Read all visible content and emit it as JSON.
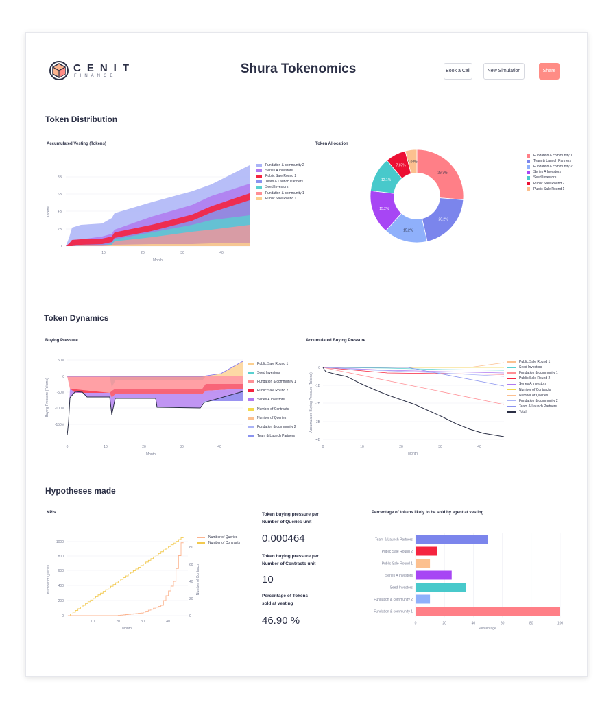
{
  "header": {
    "logo_line1": "CENIT",
    "logo_line2": "FINANCE",
    "title": "Shura Tokenomics",
    "buttons": {
      "book": "Book a Call",
      "new_sim": "New Simulation",
      "share": "Share"
    }
  },
  "colors": {
    "fundation_community_2": "#aab3f7",
    "series_a": "#b07af0",
    "public_sale_2": "#f5243f",
    "team_launch": "#8a93ef",
    "seed": "#59d0d0",
    "fundation_community_1": "#ff8f95",
    "public_sale_1": "#fccf8f",
    "number_contracts": "#f2d94e",
    "number_queries": "#fcc08f",
    "total": "#2b2f45",
    "accent": "#ff8c85"
  },
  "sections": {
    "distribution": "Token Distribution",
    "dynamics": "Token Dynamics",
    "hypotheses": "Hypotheses made"
  },
  "vesting_chart": {
    "title": "Accumulated Vesting (Tokens)",
    "ylabel": "Tokens",
    "xlabel": "Month",
    "yticks": [
      "0",
      "2B",
      "4B",
      "6B",
      "8B"
    ],
    "xticks": [
      "10",
      "20",
      "30",
      "40"
    ],
    "legend": [
      "Fundation & community 2",
      "Series A Investors",
      "Public Sale Round 2",
      "Team & Launch Partners",
      "Seed Investors",
      "Fundation & community 1",
      "Public Sale Round 1"
    ]
  },
  "allocation_chart": {
    "title": "Token Allocation",
    "legend": [
      "Fundation & community 1",
      "Team & Launch Partners",
      "Fundation & community 2",
      "Series A Investors",
      "Seed Investors",
      "Public Sale Round 2",
      "Public Sale Round 1"
    ],
    "labels": [
      "26.3%",
      "20.2%",
      "15.2%",
      "15.2%",
      "12.1%",
      "7.07%",
      "4.04%"
    ]
  },
  "buying_chart": {
    "title": "Buying Pressure",
    "ylabel": "Buying Pressure (Tokens)",
    "xlabel": "Month",
    "yticks": [
      "50M",
      "0",
      "-50M",
      "-100M",
      "-150M"
    ],
    "xticks": [
      "0",
      "10",
      "20",
      "30",
      "40"
    ],
    "legend": [
      "Public Sale Round 1",
      "Seed Investors",
      "Fundation & community 1",
      "Public Sale Round 2",
      "Series A Investors",
      "Number of Contracts",
      "Number of Queries",
      "Fundation & community 2",
      "Team & Launch Partners"
    ]
  },
  "acc_buying_chart": {
    "title": "Accumulated Buying Pressure",
    "ylabel": "Accumulated Buying Pressure (Tokens)",
    "xlabel": "Month",
    "yticks": [
      "0",
      "-1B",
      "-2B",
      "-3B",
      "-4B"
    ],
    "xticks": [
      "0",
      "10",
      "20",
      "30",
      "40"
    ],
    "legend": [
      "Public Sale Round 1",
      "Seed Investors",
      "Fundation & community 1",
      "Public Sale Round 2",
      "Series A Investors",
      "Number of Contracts",
      "Number of Queries",
      "Fundation & community 2",
      "Team & Launch Partners",
      "Total"
    ]
  },
  "kpi_chart": {
    "title": "KPIs",
    "ylabel_left": "Number of Queries",
    "ylabel_right": "Number of Contracts",
    "xlabel": "Month",
    "yticks_left": [
      "0",
      "200",
      "400",
      "600",
      "800",
      "1000"
    ],
    "yticks_right": [
      "0",
      "20",
      "40",
      "60",
      "80"
    ],
    "xticks": [
      "10",
      "20",
      "30",
      "40"
    ],
    "legend": [
      "Number of Queries",
      "Number of Contracts"
    ]
  },
  "kpis": {
    "q1": "Token buying pressure per Number of Queries unit",
    "v1": "0.000464",
    "q2": "Token buying pressure per Number of Contracts unit",
    "v2": "10",
    "q3": "Percentage of Tokens sold at vesting",
    "v3": "46.90 %"
  },
  "sell_chart": {
    "title": "Percentage of tokens likely to be sold by agent at vesting",
    "xlabel": "Percentage",
    "xticks": [
      "0",
      "20",
      "40",
      "60",
      "80",
      "100"
    ]
  },
  "chart_data": [
    {
      "type": "area",
      "title": "Accumulated Vesting (Tokens)",
      "xlabel": "Month",
      "ylabel": "Tokens",
      "x": [
        0,
        1,
        2,
        12,
        13,
        36,
        46
      ],
      "series": [
        {
          "name": "Public Sale Round 1",
          "values": [
            0,
            0.1,
            0.2,
            0.2,
            0.3,
            0.4,
            0.4
          ]
        },
        {
          "name": "Fundation & community 1",
          "values": [
            0,
            0.2,
            0.4,
            0.6,
            0.8,
            1.6,
            2.1
          ]
        },
        {
          "name": "Seed Investors",
          "values": [
            0,
            0,
            0,
            0.1,
            0.2,
            0.9,
            1.2
          ]
        },
        {
          "name": "Team & Launch Partners",
          "values": [
            0,
            0,
            0,
            0,
            0,
            0.1,
            0.1
          ]
        },
        {
          "name": "Public Sale Round 2",
          "values": [
            0,
            0.5,
            0.5,
            0.7,
            1.0,
            1.3,
            1.7
          ]
        },
        {
          "name": "Series A Investors",
          "values": [
            0,
            0,
            0.1,
            0.3,
            0.6,
            1.2,
            1.4
          ]
        },
        {
          "name": "Fundation & community 2",
          "values": [
            0,
            1.0,
            1.6,
            1.5,
            1.4,
            1.2,
            1.0
          ]
        }
      ],
      "ylim": [
        0,
        8.2
      ]
    },
    {
      "type": "pie",
      "title": "Token Allocation",
      "categories": [
        "Fundation & community 1",
        "Team & Launch Partners",
        "Fundation & community 2",
        "Series A Investors",
        "Seed Investors",
        "Public Sale Round 2",
        "Public Sale Round 1"
      ],
      "values": [
        26.3,
        20.2,
        15.2,
        15.2,
        12.1,
        7.07,
        4.04
      ]
    },
    {
      "type": "bar",
      "title": "Percentage of tokens likely to be sold by agent at vesting",
      "categories": [
        "Team & Launch Partners",
        "Public Sale Round 2",
        "Public Sale Round 1",
        "Series A Investors",
        "Seed Investors",
        "Fundation & community 2",
        "Fundation & community 1"
      ],
      "values": [
        50,
        15,
        10,
        25,
        35,
        10,
        100
      ],
      "xlabel": "Percentage",
      "xlim": [
        0,
        100
      ]
    },
    {
      "type": "line",
      "title": "KPIs",
      "xlabel": "Month",
      "series": [
        {
          "name": "Number of Queries",
          "x": [
            1,
            46
          ],
          "values": [
            0,
            1050
          ]
        },
        {
          "name": "Number of Contracts",
          "x": [
            1,
            20,
            30,
            38,
            43,
            46
          ],
          "values": [
            0,
            0,
            3,
            12,
            40,
            85
          ]
        }
      ]
    }
  ]
}
